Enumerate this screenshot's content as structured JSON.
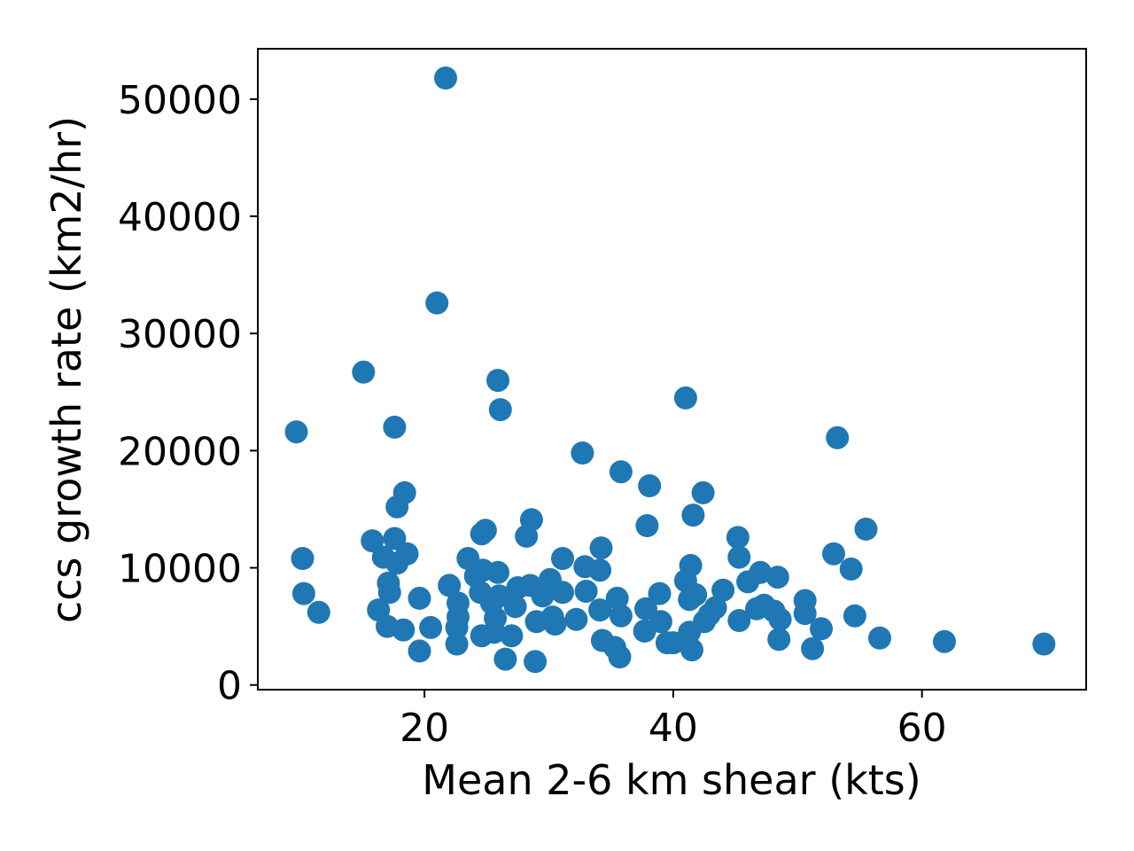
{
  "chart_data": {
    "type": "scatter",
    "title": "",
    "xlabel": "Mean 2-6 km shear (kts)",
    "ylabel": "ccs growth rate (km2/hr)",
    "xlim": [
      6.6,
      73.2
    ],
    "ylim": [
      -400,
      54300
    ],
    "xticks": [
      20,
      40,
      60
    ],
    "yticks": [
      0,
      10000,
      20000,
      30000,
      40000,
      50000
    ],
    "xtick_labels": [
      "20",
      "40",
      "60"
    ],
    "ytick_labels": [
      "0",
      "10000",
      "20000",
      "30000",
      "40000",
      "50000"
    ],
    "grid": false,
    "legend": "none",
    "colors": {
      "marker": "#1f77b4"
    },
    "points": [
      {
        "x": 21.7,
        "y": 51800
      },
      {
        "x": 21.0,
        "y": 32600
      },
      {
        "x": 15.1,
        "y": 26700
      },
      {
        "x": 9.7,
        "y": 21600
      },
      {
        "x": 17.6,
        "y": 22000
      },
      {
        "x": 25.9,
        "y": 26000
      },
      {
        "x": 26.1,
        "y": 23500
      },
      {
        "x": 41.0,
        "y": 24500
      },
      {
        "x": 53.2,
        "y": 21100
      },
      {
        "x": 32.7,
        "y": 19800
      },
      {
        "x": 35.8,
        "y": 18200
      },
      {
        "x": 38.1,
        "y": 17000
      },
      {
        "x": 42.4,
        "y": 16400
      },
      {
        "x": 18.4,
        "y": 16400
      },
      {
        "x": 17.8,
        "y": 15200
      },
      {
        "x": 41.6,
        "y": 14500
      },
      {
        "x": 28.6,
        "y": 14100
      },
      {
        "x": 37.9,
        "y": 13600
      },
      {
        "x": 55.5,
        "y": 13300
      },
      {
        "x": 24.9,
        "y": 13200
      },
      {
        "x": 24.6,
        "y": 12900
      },
      {
        "x": 28.2,
        "y": 12700
      },
      {
        "x": 45.2,
        "y": 12600
      },
      {
        "x": 17.6,
        "y": 12500
      },
      {
        "x": 15.8,
        "y": 12300
      },
      {
        "x": 34.2,
        "y": 11700
      },
      {
        "x": 18.6,
        "y": 11200
      },
      {
        "x": 52.9,
        "y": 11200
      },
      {
        "x": 16.7,
        "y": 10900
      },
      {
        "x": 10.2,
        "y": 10800
      },
      {
        "x": 23.5,
        "y": 10800
      },
      {
        "x": 45.3,
        "y": 10900
      },
      {
        "x": 31.1,
        "y": 10800
      },
      {
        "x": 17.8,
        "y": 10400
      },
      {
        "x": 41.4,
        "y": 10200
      },
      {
        "x": 32.9,
        "y": 10100
      },
      {
        "x": 24.7,
        "y": 9800
      },
      {
        "x": 34.1,
        "y": 9800
      },
      {
        "x": 54.3,
        "y": 9900
      },
      {
        "x": 25.9,
        "y": 9600
      },
      {
        "x": 47.0,
        "y": 9600
      },
      {
        "x": 24.1,
        "y": 9300
      },
      {
        "x": 48.4,
        "y": 9200
      },
      {
        "x": 30.1,
        "y": 9000
      },
      {
        "x": 41.0,
        "y": 8900
      },
      {
        "x": 46.0,
        "y": 8800
      },
      {
        "x": 17.1,
        "y": 8700
      },
      {
        "x": 22.0,
        "y": 8500
      },
      {
        "x": 28.5,
        "y": 8500
      },
      {
        "x": 27.5,
        "y": 8300
      },
      {
        "x": 44.0,
        "y": 8100
      },
      {
        "x": 33.0,
        "y": 8000
      },
      {
        "x": 31.1,
        "y": 7900
      },
      {
        "x": 17.2,
        "y": 7900
      },
      {
        "x": 24.5,
        "y": 7900
      },
      {
        "x": 10.3,
        "y": 7800
      },
      {
        "x": 38.9,
        "y": 7800
      },
      {
        "x": 41.8,
        "y": 7700
      },
      {
        "x": 26.0,
        "y": 7600
      },
      {
        "x": 29.5,
        "y": 7600
      },
      {
        "x": 19.6,
        "y": 7400
      },
      {
        "x": 35.5,
        "y": 7400
      },
      {
        "x": 41.3,
        "y": 7300
      },
      {
        "x": 50.6,
        "y": 7200
      },
      {
        "x": 22.7,
        "y": 7000
      },
      {
        "x": 25.4,
        "y": 7000
      },
      {
        "x": 47.3,
        "y": 6800
      },
      {
        "x": 27.3,
        "y": 6700
      },
      {
        "x": 43.4,
        "y": 6600
      },
      {
        "x": 37.8,
        "y": 6500
      },
      {
        "x": 16.3,
        "y": 6400
      },
      {
        "x": 34.1,
        "y": 6400
      },
      {
        "x": 11.5,
        "y": 6200
      },
      {
        "x": 46.7,
        "y": 6500
      },
      {
        "x": 48.1,
        "y": 6300
      },
      {
        "x": 50.6,
        "y": 6100
      },
      {
        "x": 42.9,
        "y": 6000
      },
      {
        "x": 35.8,
        "y": 5900
      },
      {
        "x": 54.6,
        "y": 5900
      },
      {
        "x": 22.7,
        "y": 5800
      },
      {
        "x": 30.3,
        "y": 5800
      },
      {
        "x": 25.7,
        "y": 5700
      },
      {
        "x": 32.2,
        "y": 5600
      },
      {
        "x": 45.3,
        "y": 5500
      },
      {
        "x": 42.5,
        "y": 5400
      },
      {
        "x": 48.6,
        "y": 5600
      },
      {
        "x": 29.0,
        "y": 5400
      },
      {
        "x": 39.0,
        "y": 5400
      },
      {
        "x": 30.5,
        "y": 5200
      },
      {
        "x": 17.0,
        "y": 5000
      },
      {
        "x": 20.5,
        "y": 4900
      },
      {
        "x": 22.6,
        "y": 4900
      },
      {
        "x": 51.9,
        "y": 4800
      },
      {
        "x": 18.3,
        "y": 4700
      },
      {
        "x": 37.7,
        "y": 4600
      },
      {
        "x": 25.6,
        "y": 4500
      },
      {
        "x": 41.3,
        "y": 4500
      },
      {
        "x": 24.6,
        "y": 4200
      },
      {
        "x": 27.0,
        "y": 4200
      },
      {
        "x": 56.6,
        "y": 4000
      },
      {
        "x": 48.5,
        "y": 3900
      },
      {
        "x": 34.3,
        "y": 3800
      },
      {
        "x": 61.8,
        "y": 3700
      },
      {
        "x": 22.6,
        "y": 3500
      },
      {
        "x": 39.5,
        "y": 3600
      },
      {
        "x": 40.0,
        "y": 3600
      },
      {
        "x": 69.8,
        "y": 3500
      },
      {
        "x": 35.3,
        "y": 3200
      },
      {
        "x": 51.2,
        "y": 3100
      },
      {
        "x": 41.5,
        "y": 3000
      },
      {
        "x": 19.6,
        "y": 2900
      },
      {
        "x": 35.7,
        "y": 2400
      },
      {
        "x": 26.5,
        "y": 2200
      },
      {
        "x": 28.9,
        "y": 2000
      }
    ]
  }
}
